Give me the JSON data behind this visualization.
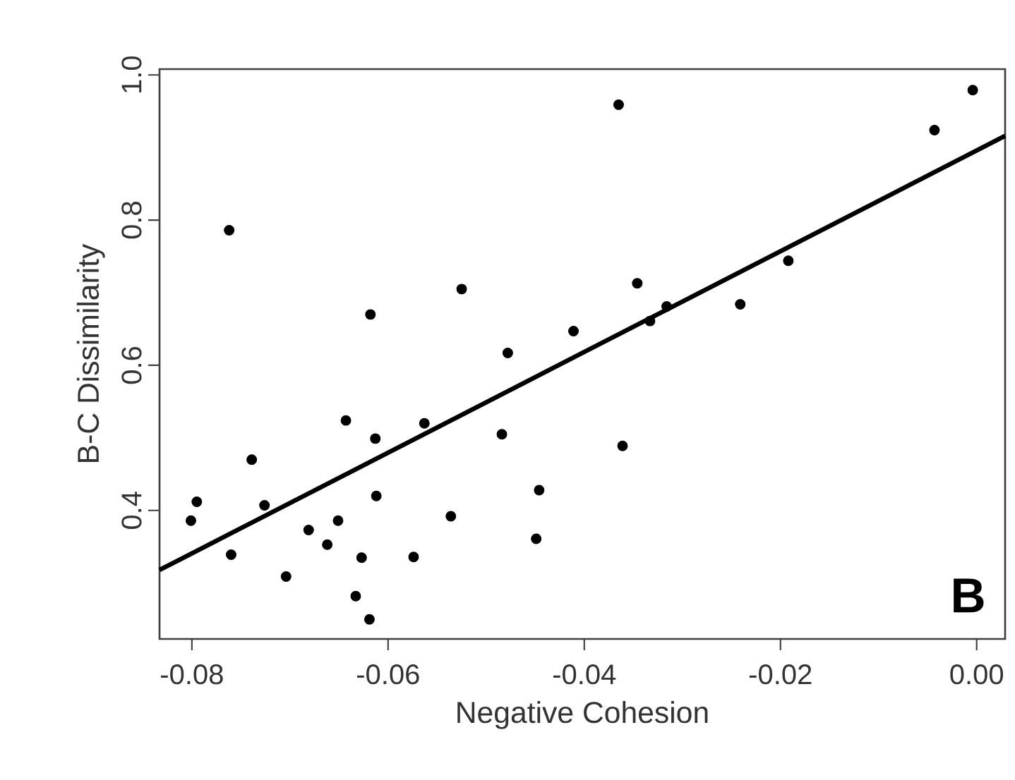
{
  "chart_data": {
    "type": "scatter",
    "xlabel": "Negative Cohesion",
    "ylabel": "B-C Dissimilarity",
    "annotations": [
      "B"
    ],
    "xlim": [
      -0.0833,
      0.0029
    ],
    "ylim": [
      0.223,
      1.008
    ],
    "xticks": [
      -0.08,
      -0.06,
      -0.04,
      -0.02,
      {
        "value": 0,
        "label": "0.00"
      }
    ],
    "yticks": [
      0.4,
      0.6,
      0.8,
      {
        "value": 1,
        "label": "1.0"
      }
    ],
    "series": [
      {
        "marker": "circle",
        "color": "#000000",
        "x": [
          -0.0762,
          -0.0618,
          -0.0525,
          -0.0478,
          -0.0411,
          -0.0365,
          -0.0004,
          -0.0043,
          -0.0192,
          -0.0346,
          -0.0316,
          -0.0333,
          -0.0241,
          -0.0643,
          -0.0563,
          -0.0613,
          -0.0484,
          -0.0739,
          -0.0795,
          -0.0801,
          -0.0726,
          -0.0612,
          -0.0446,
          -0.0651,
          -0.0681,
          -0.0536,
          -0.0662,
          -0.076,
          -0.0627,
          -0.0574,
          -0.0449,
          -0.0704,
          -0.0633,
          -0.0619,
          -0.0361
        ],
        "values": [
          0.786,
          0.67,
          0.705,
          0.617,
          0.647,
          0.959,
          0.979,
          0.924,
          0.744,
          0.713,
          0.681,
          0.661,
          0.684,
          0.524,
          0.52,
          0.499,
          0.505,
          0.47,
          0.412,
          0.386,
          0.407,
          0.42,
          0.428,
          0.386,
          0.373,
          0.392,
          0.353,
          0.339,
          0.335,
          0.336,
          0.361,
          0.309,
          0.282,
          0.25,
          0.489
        ]
      },
      {
        "type": "line",
        "marker": "none",
        "line_style": "solid",
        "color": "#000000",
        "x": [
          -0.0833,
          0.0029
        ],
        "values": [
          0.318,
          0.916
        ]
      }
    ]
  }
}
